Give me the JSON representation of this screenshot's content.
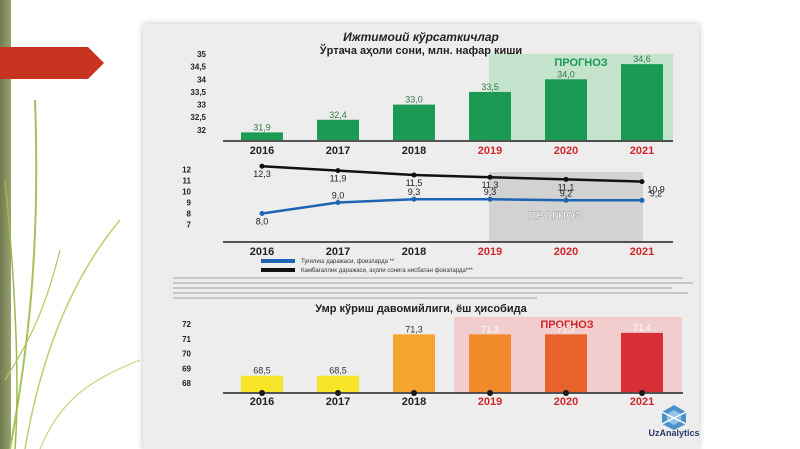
{
  "header": {
    "title": "Ижтимоий кўрсаткичлар",
    "subtitle": "Ўртача аҳоли сони, млн. нафар киши"
  },
  "forecast_label": "ПРОГНОЗ",
  "logo_text": "UzAnalytics",
  "legend": {
    "birth": "Туғилиш даражаси, фоизларда **",
    "poverty": "Камбағаллик даражаси, аҳоли сонига нисбатан фоизларда***"
  },
  "colors": {
    "green_bar": "#1a9a52",
    "blue_line": "#1d64b4",
    "black_line": "#111111",
    "yellow": "#f7e52a",
    "orange": "#f4a52e",
    "red_year": "#d0262b",
    "forecast_shade": "#c8c8c8"
  },
  "chart_data": [
    {
      "type": "bar",
      "title": "Ўртача аҳоли сони, млн. нафар киши",
      "categories": [
        "2016",
        "2017",
        "2018",
        "2019",
        "2020",
        "2021"
      ],
      "values": [
        31.9,
        32.4,
        33.0,
        33.5,
        34.0,
        34.6
      ],
      "value_labels": [
        "31,9",
        "32,4",
        "33,0",
        "33,5",
        "34,0",
        "34,6"
      ],
      "yticks": [
        "32",
        "32,5",
        "33",
        "33,5",
        "34",
        "34,5",
        "35"
      ],
      "ylim": [
        31.6,
        35.0
      ],
      "forecast_from": "2019"
    },
    {
      "type": "line",
      "categories": [
        "2016",
        "2017",
        "2018",
        "2019",
        "2020",
        "2021"
      ],
      "series": [
        {
          "name": "Туғилиш даражаси, фоизларда **",
          "values": [
            8.0,
            9.0,
            9.3,
            9.3,
            9.2,
            9.2
          ],
          "labels": [
            "8,0",
            "9,0",
            "9,3",
            "9,3",
            "9,2",
            "9,2"
          ]
        },
        {
          "name": "Камбағаллик даражаси, аҳоли сонига нисбатан фоизларда***",
          "values": [
            12.3,
            11.9,
            11.5,
            11.3,
            11.1,
            10.9
          ],
          "labels": [
            "12,3",
            "11,9",
            "11,5",
            "11,3",
            "11,1",
            "10,9"
          ]
        }
      ],
      "yticks": [
        "7",
        "8",
        "9",
        "10",
        "11",
        "12"
      ],
      "ylim": [
        6.5,
        12.5
      ],
      "forecast_from": "2019"
    },
    {
      "type": "bar",
      "title": "Умр кўриш давомийлиги, ёш ҳисобида",
      "categories": [
        "2016",
        "2017",
        "2018",
        "2019",
        "2020",
        "2021"
      ],
      "values": [
        68.5,
        68.5,
        71.3,
        71.3,
        71.3,
        71.4
      ],
      "value_labels": [
        "68,5",
        "68,5",
        "71,3",
        "71,3",
        "71,3",
        "71,4"
      ],
      "yticks": [
        "68",
        "69",
        "70",
        "71",
        "72"
      ],
      "ylim": [
        67.4,
        72.0
      ],
      "forecast_from": "2019"
    }
  ]
}
